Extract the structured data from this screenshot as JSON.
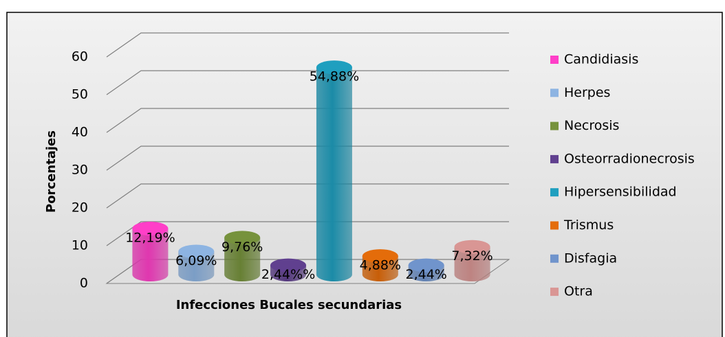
{
  "chart_data": {
    "type": "bar3d",
    "x_label": "Infecciones Bucales secundarias",
    "y_label": "Porcentajes",
    "categories": [
      "Candidiasis",
      "Herpes",
      "Necrosis",
      "Osteorradionecrosis",
      "Hipersensibilidad",
      "Trismus",
      "Disfagia",
      "Otra"
    ],
    "values": [
      12.19,
      6.09,
      9.76,
      2.44,
      54.88,
      4.88,
      2.44,
      7.32
    ],
    "value_labels": [
      "12,19%",
      "6,09%",
      "9,76%",
      "2,44%%",
      "54,88%",
      "4,88%",
      "2,44%",
      "7,32%"
    ],
    "colors": [
      "#ff3fc8",
      "#8db4e2",
      "#76923c",
      "#60408f",
      "#1f9fbf",
      "#e46c0a",
      "#7094cc",
      "#d99694"
    ],
    "ylim": [
      0,
      60
    ],
    "yticks": [
      0,
      10,
      20,
      30,
      40,
      50,
      60
    ],
    "grid": true,
    "legend": "right"
  }
}
